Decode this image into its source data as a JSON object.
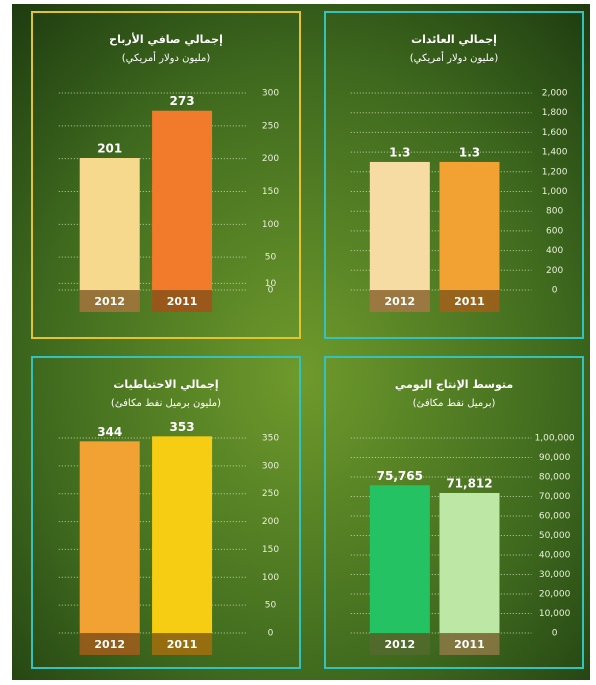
{
  "chart_data": [
    {
      "type": "bar",
      "title": "إجمالي صافي الأرباح",
      "subtitle": "(مليون دولار أمريكي)",
      "categories": [
        "2012",
        "2011"
      ],
      "values": [
        201,
        273
      ],
      "colors": [
        "#f7d98e",
        "#f27b2b"
      ],
      "ylim": [
        0,
        300
      ],
      "yticks": [
        0,
        10,
        50,
        100,
        150,
        200,
        250,
        300
      ],
      "grid": true,
      "frame_color": "#e3c42a"
    },
    {
      "type": "bar",
      "title": "إجمالي العائدات",
      "subtitle": "(مليون دولار أمريكي)",
      "categories": [
        "2012",
        "2011"
      ],
      "values": [
        1300,
        1300
      ],
      "value_labels": [
        "1.3",
        "1.3"
      ],
      "colors": [
        "#f6dba2",
        "#f1a232"
      ],
      "ylim": [
        0,
        2000
      ],
      "yticks": [
        0,
        200,
        400,
        600,
        800,
        {
          "value": 1000,
          "label": "1,000"
        },
        {
          "value": 1200,
          "label": "1,200"
        },
        {
          "value": 1400,
          "label": "1,400"
        },
        {
          "value": 1600,
          "label": "1,600"
        },
        {
          "value": 1800,
          "label": "1,800"
        },
        {
          "value": 2000,
          "label": "2,000"
        }
      ],
      "grid": true,
      "frame_color": "#33c2bd"
    },
    {
      "type": "bar",
      "title": "إجمالي الاحتياطيات",
      "subtitle": "(مليون برميل نفط مكافئ)",
      "categories": [
        "2012",
        "2011"
      ],
      "values": [
        344,
        353
      ],
      "colors": [
        "#f2a233",
        "#f6cd12"
      ],
      "ylim": [
        0,
        350
      ],
      "yticks": [
        0,
        50,
        100,
        150,
        200,
        250,
        300,
        350
      ],
      "grid": true,
      "frame_color": "#33c2bd"
    },
    {
      "type": "bar",
      "title": "متوسط الإنتاج اليومي",
      "subtitle": "(برميل نفط مكافئ)",
      "categories": [
        "2012",
        "2011"
      ],
      "values": [
        75765,
        71812
      ],
      "value_labels": [
        "75,765",
        "71,812"
      ],
      "colors": [
        "#25c263",
        "#bce7a4"
      ],
      "ylim": [
        0,
        100000
      ],
      "yticks": [
        0,
        {
          "value": 10000,
          "label": "10,000"
        },
        {
          "value": 20000,
          "label": "20,000"
        },
        {
          "value": 30000,
          "label": "30,000"
        },
        {
          "value": 40000,
          "label": "40,000"
        },
        {
          "value": 50000,
          "label": "50,000"
        },
        {
          "value": 60000,
          "label": "60,000"
        },
        {
          "value": 70000,
          "label": "70,000"
        },
        {
          "value": 80000,
          "label": "80,000"
        },
        {
          "value": 90000,
          "label": "90,000"
        },
        {
          "value": 100000,
          "label": "1,00,000"
        }
      ],
      "grid": true,
      "frame_color": "#33c2bd"
    }
  ]
}
